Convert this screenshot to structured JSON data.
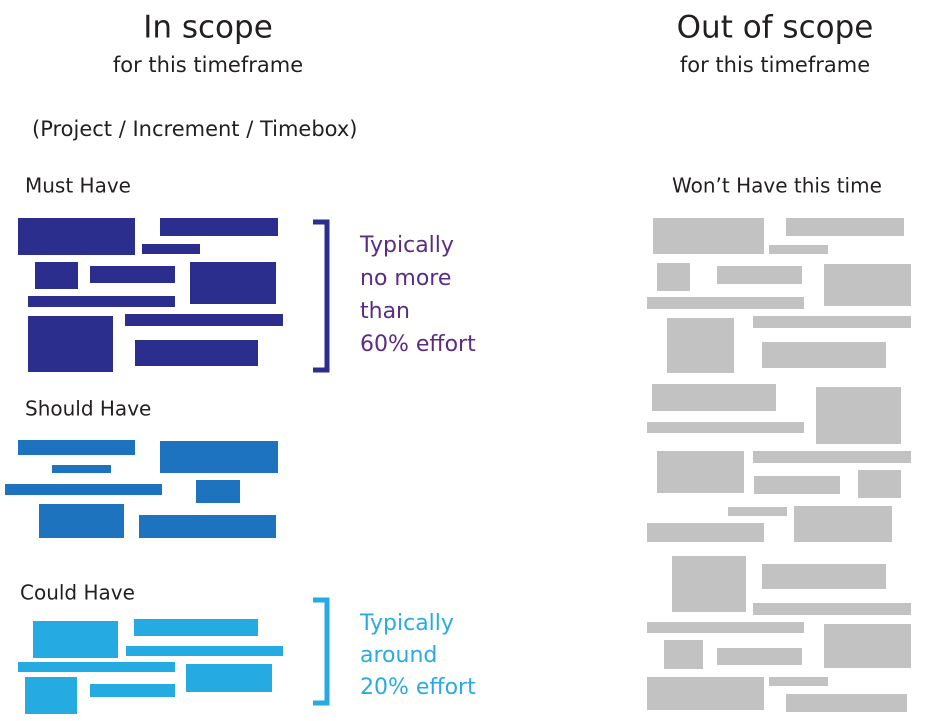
{
  "in_scope": {
    "title": "In scope",
    "subtitle": "for this timeframe",
    "note": "(Project / Increment / Timebox)"
  },
  "out_of_scope": {
    "title": "Out of scope",
    "subtitle": "for this timeframe"
  },
  "must_have": {
    "label": "Must Have",
    "annotation": [
      "Typically",
      "no more",
      "than",
      "60% effort"
    ]
  },
  "should_have": {
    "label": "Should Have"
  },
  "could_have": {
    "label": "Could Have",
    "annotation": [
      "Typically",
      "around",
      "20% effort"
    ]
  },
  "wont_have": {
    "label": "Won’t Have this time"
  }
}
